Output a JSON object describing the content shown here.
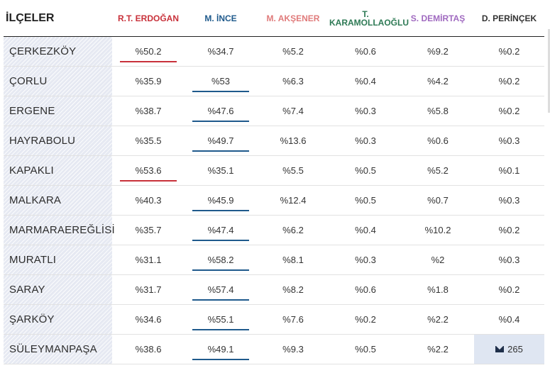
{
  "table": {
    "district_header": "İLÇELER",
    "candidates": [
      {
        "label": "R.T. ERDOĞAN",
        "color": "#c8313a"
      },
      {
        "label": "M. İNCE",
        "color": "#1f5a8c"
      },
      {
        "label": "M. AKŞENER",
        "color": "#e07b7b"
      },
      {
        "label": "T. KARAMOLLAOĞLU",
        "label_line1": "T.",
        "label_line2": "KARAMOLLAOĞLU",
        "color": "#2e7a55"
      },
      {
        "label": "S. DEMİRTAŞ",
        "color": "#a06ac0"
      },
      {
        "label": "D. PERİNÇEK",
        "color": "#333333"
      }
    ],
    "rows": [
      {
        "name": "ÇERKEZKÖY",
        "values": [
          "%50.2",
          "%34.7",
          "%5.2",
          "%0.6",
          "%9.2",
          "%0.2"
        ],
        "winner": 0
      },
      {
        "name": "ÇORLU",
        "values": [
          "%35.9",
          "%53",
          "%6.3",
          "%0.4",
          "%4.2",
          "%0.2"
        ],
        "winner": 1
      },
      {
        "name": "ERGENE",
        "values": [
          "%38.7",
          "%47.6",
          "%7.4",
          "%0.3",
          "%5.8",
          "%0.2"
        ],
        "winner": 1
      },
      {
        "name": "HAYRABOLU",
        "values": [
          "%35.5",
          "%49.7",
          "%13.6",
          "%0.3",
          "%0.6",
          "%0.3"
        ],
        "winner": 1
      },
      {
        "name": "KAPAKLI",
        "values": [
          "%53.6",
          "%35.1",
          "%5.5",
          "%0.5",
          "%5.2",
          "%0.1"
        ],
        "winner": 0
      },
      {
        "name": "MALKARA",
        "values": [
          "%40.3",
          "%45.9",
          "%12.4",
          "%0.5",
          "%0.7",
          "%0.3"
        ],
        "winner": 1
      },
      {
        "name": "MARMARAEREĞLİSİ",
        "values": [
          "%35.7",
          "%47.4",
          "%6.2",
          "%0.4",
          "%10.2",
          "%0.2"
        ],
        "winner": 1
      },
      {
        "name": "MURATLI",
        "values": [
          "%31.1",
          "%58.2",
          "%8.1",
          "%0.3",
          "%2",
          "%0.3"
        ],
        "winner": 1
      },
      {
        "name": "SARAY",
        "values": [
          "%31.7",
          "%57.4",
          "%8.2",
          "%0.6",
          "%1.8",
          "%0.2"
        ],
        "winner": 1
      },
      {
        "name": "ŞARKÖY",
        "values": [
          "%34.6",
          "%55.1",
          "%7.6",
          "%0.2",
          "%2.2",
          "%0.4"
        ],
        "winner": 1
      },
      {
        "name": "SÜLEYMANPAŞA",
        "values": [
          "%38.6",
          "%49.1",
          "%9.3",
          "%0.5",
          "%2.2"
        ],
        "winner": 1,
        "message_count": "265",
        "message_icon": "envelope-icon"
      }
    ]
  }
}
